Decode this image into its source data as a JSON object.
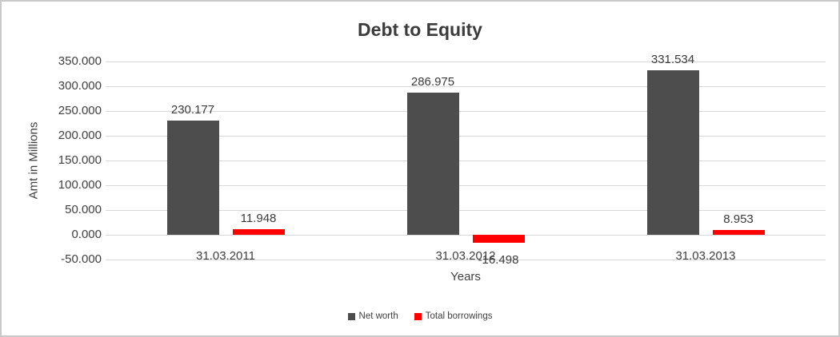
{
  "chart_data": {
    "type": "bar",
    "title": "Debt to Equity",
    "xlabel": "Years",
    "ylabel": "Amt in Millions",
    "categories": [
      "31.03.2011",
      "31.03.2012",
      "31.03.2013"
    ],
    "series": [
      {
        "name": "Net worth",
        "color": "#4d4d4d",
        "values": [
          230.177,
          286.975,
          331.534
        ],
        "labels": [
          "230.177",
          "286.975",
          "331.534"
        ]
      },
      {
        "name": "Total borrowings",
        "color": "#fe0000",
        "values": [
          11.948,
          -16.498,
          8.953
        ],
        "labels": [
          "11.948",
          "-16.498",
          "8.953"
        ]
      }
    ],
    "ylim": [
      -50,
      350
    ],
    "ytick_step": 50,
    "ytick_labels": [
      "-50.000",
      "0.000",
      "50.000",
      "100.000",
      "150.000",
      "200.000",
      "250.000",
      "300.000",
      "350.000"
    ],
    "grid": true,
    "legend_position": "bottom"
  },
  "style": {
    "gridline_color": "#d9d9d9",
    "title_color": "#3b3b3b",
    "axis_text_color": "#404040",
    "border_color": "#c9c9c9",
    "background": "#ffffff"
  }
}
